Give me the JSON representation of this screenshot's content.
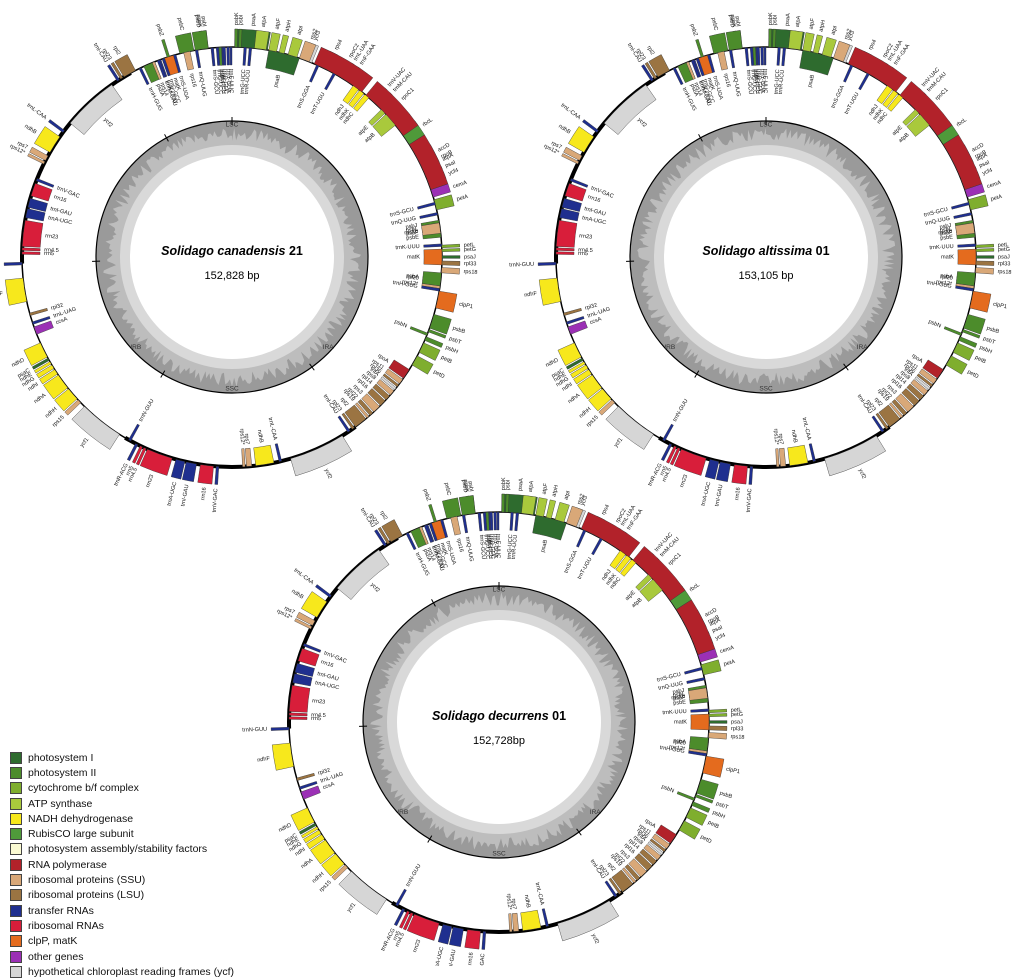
{
  "maps": [
    {
      "species": "Solidago canadensis",
      "sample": "21",
      "length": "152,828 bp",
      "region_labels": {
        "lsc": "LSC",
        "ssc": "SSC",
        "ira": "IRA",
        "irb": "IRB"
      }
    },
    {
      "species": "Solidago altissima",
      "sample": "01",
      "length": "153,105 bp",
      "region_labels": {
        "lsc": "LSC",
        "ssc": "SSC",
        "ira": "IRA",
        "irb": "IRB"
      }
    },
    {
      "species": "Solidago decurrens",
      "sample": "01",
      "length": "152,728bp",
      "region_labels": {
        "lsc": "LSC",
        "ssc": "SSC",
        "ira": "IRA",
        "irb": "IRB"
      }
    }
  ],
  "legend": [
    {
      "label": "photosystem I",
      "color": "#2e6b2e"
    },
    {
      "label": "photosystem II",
      "color": "#4c8c2b"
    },
    {
      "label": "cytochrome b/f complex",
      "color": "#7fae2e"
    },
    {
      "label": "ATP synthase",
      "color": "#a9c93c"
    },
    {
      "label": "NADH dehydrogenase",
      "color": "#f7e81c"
    },
    {
      "label": "RubisCO large subunit",
      "color": "#4f9a3a"
    },
    {
      "label": "photosystem assembly/stability factors",
      "color": "#fafad2"
    },
    {
      "label": "RNA polymerase",
      "color": "#b2222a"
    },
    {
      "label": "ribosomal proteins (SSU)",
      "color": "#d9a878"
    },
    {
      "label": "ribosomal proteins (LSU)",
      "color": "#9b7442"
    },
    {
      "label": "transfer RNAs",
      "color": "#1f2f8f"
    },
    {
      "label": "ribosomal RNAs",
      "color": "#d81e3a"
    },
    {
      "label": "clpP, matK",
      "color": "#e46b1e"
    },
    {
      "label": "other genes",
      "color": "#9b30b5"
    },
    {
      "label": "hypothetical chloroplast reading frames (ycf)",
      "color": "#d6d6d6"
    }
  ],
  "genes": [
    {
      "name": "psaA",
      "cat": 0,
      "start": 0.002,
      "end": 0.027,
      "side": "out"
    },
    {
      "name": "psaB",
      "cat": 0,
      "start": 0.028,
      "end": 0.052,
      "side": "in"
    },
    {
      "name": "ycf3",
      "cat": 14,
      "start": 0.055,
      "end": 0.062,
      "side": "out"
    },
    {
      "name": "trnS-GGA",
      "cat": 10,
      "start": 0.066,
      "end": 0.068,
      "side": "in"
    },
    {
      "name": "rps4",
      "cat": 8,
      "start": 0.071,
      "end": 0.077,
      "side": "out"
    },
    {
      "name": "trnT-UGU",
      "cat": 10,
      "start": 0.08,
      "end": 0.082,
      "side": "in"
    },
    {
      "name": "trnL-UAA",
      "cat": 10,
      "start": 0.088,
      "end": 0.09,
      "side": "out"
    },
    {
      "name": "trnF-GAA",
      "cat": 10,
      "start": 0.093,
      "end": 0.095,
      "side": "out"
    },
    {
      "name": "ndhJ",
      "cat": 4,
      "start": 0.098,
      "end": 0.103,
      "side": "in"
    },
    {
      "name": "ndhK",
      "cat": 4,
      "start": 0.104,
      "end": 0.108,
      "side": "in"
    },
    {
      "name": "ndhC",
      "cat": 4,
      "start": 0.109,
      "end": 0.113,
      "side": "in"
    },
    {
      "name": "trnV-UAC",
      "cat": 10,
      "start": 0.117,
      "end": 0.119,
      "side": "out"
    },
    {
      "name": "trnM-CAU",
      "cat": 10,
      "start": 0.122,
      "end": 0.124,
      "side": "out"
    },
    {
      "name": "atpE",
      "cat": 3,
      "start": 0.126,
      "end": 0.13,
      "side": "in"
    },
    {
      "name": "atpB",
      "cat": 3,
      "start": 0.131,
      "end": 0.142,
      "side": "in"
    },
    {
      "name": "rbcL",
      "cat": 5,
      "start": 0.148,
      "end": 0.16,
      "side": "out"
    },
    {
      "name": "accD",
      "cat": 13,
      "start": 0.168,
      "end": 0.18,
      "side": "out"
    },
    {
      "name": "psaI",
      "cat": 0,
      "start": 0.185,
      "end": 0.187,
      "side": "out"
    },
    {
      "name": "ycf4",
      "cat": 14,
      "start": 0.189,
      "end": 0.194,
      "side": "out"
    },
    {
      "name": "cemA",
      "cat": 13,
      "start": 0.198,
      "end": 0.204,
      "side": "out"
    },
    {
      "name": "petA",
      "cat": 2,
      "start": 0.206,
      "end": 0.214,
      "side": "out"
    },
    {
      "name": "psbJ",
      "cat": 1,
      "start": 0.222,
      "end": 0.224,
      "side": "in"
    },
    {
      "name": "psbL",
      "cat": 1,
      "start": 0.225,
      "end": 0.227,
      "side": "in"
    },
    {
      "name": "psbF",
      "cat": 1,
      "start": 0.228,
      "end": 0.23,
      "side": "in"
    },
    {
      "name": "psbE",
      "cat": 1,
      "start": 0.231,
      "end": 0.235,
      "side": "in"
    },
    {
      "name": "petL",
      "cat": 2,
      "start": 0.241,
      "end": 0.243,
      "side": "out"
    },
    {
      "name": "petG",
      "cat": 2,
      "start": 0.244,
      "end": 0.246,
      "side": "out"
    },
    {
      "name": "psaJ",
      "cat": 0,
      "start": 0.249,
      "end": 0.251,
      "side": "out"
    },
    {
      "name": "rpl33",
      "cat": 9,
      "start": 0.253,
      "end": 0.256,
      "side": "out"
    },
    {
      "name": "rps18",
      "cat": 8,
      "start": 0.258,
      "end": 0.262,
      "side": "out"
    },
    {
      "name": "rpl20",
      "cat": 9,
      "start": 0.266,
      "end": 0.27,
      "side": "in"
    },
    {
      "name": "rps12*",
      "cat": 8,
      "start": 0.272,
      "end": 0.274,
      "side": "in"
    },
    {
      "name": "clpP1",
      "cat": 12,
      "start": 0.276,
      "end": 0.289,
      "side": "out"
    },
    {
      "name": "psbB",
      "cat": 1,
      "start": 0.294,
      "end": 0.305,
      "side": "out"
    },
    {
      "name": "psbT",
      "cat": 1,
      "start": 0.306,
      "end": 0.308,
      "side": "out"
    },
    {
      "name": "psbN",
      "cat": 1,
      "start": 0.309,
      "end": 0.311,
      "side": "in"
    },
    {
      "name": "psbH",
      "cat": 1,
      "start": 0.312,
      "end": 0.315,
      "side": "out"
    },
    {
      "name": "petB",
      "cat": 2,
      "start": 0.317,
      "end": 0.325,
      "side": "out"
    },
    {
      "name": "petD",
      "cat": 2,
      "start": 0.328,
      "end": 0.336,
      "side": "out"
    },
    {
      "name": "rpoA",
      "cat": 7,
      "start": 0.34,
      "end": 0.348,
      "side": "in"
    },
    {
      "name": "rps11",
      "cat": 8,
      "start": 0.349,
      "end": 0.353,
      "side": "in"
    },
    {
      "name": "rpl36",
      "cat": 9,
      "start": 0.354,
      "end": 0.356,
      "side": "in"
    },
    {
      "name": "infA",
      "cat": 14,
      "start": 0.357,
      "end": 0.359,
      "side": "in"
    },
    {
      "name": "rps8",
      "cat": 8,
      "start": 0.36,
      "end": 0.364,
      "side": "in"
    },
    {
      "name": "rpl14",
      "cat": 9,
      "start": 0.365,
      "end": 0.369,
      "side": "in"
    },
    {
      "name": "rpl16",
      "cat": 9,
      "start": 0.37,
      "end": 0.375,
      "side": "in"
    },
    {
      "name": "rps3",
      "cat": 8,
      "start": 0.376,
      "end": 0.382,
      "side": "in"
    },
    {
      "name": "rpl22",
      "cat": 9,
      "start": 0.383,
      "end": 0.386,
      "side": "in"
    },
    {
      "name": "rps19",
      "cat": 8,
      "start": 0.387,
      "end": 0.389,
      "side": "in"
    },
    {
      "name": "rpl2",
      "cat": 9,
      "start": 0.39,
      "end": 0.4,
      "side": "in"
    },
    {
      "name": "rpl23",
      "cat": 9,
      "start": 0.401,
      "end": 0.403,
      "side": "in"
    },
    {
      "name": "trnI-CAU",
      "cat": 10,
      "start": 0.405,
      "end": 0.407,
      "side": "in"
    },
    {
      "name": "ycf2",
      "cat": 14,
      "start": 0.412,
      "end": 0.455,
      "side": "out"
    },
    {
      "name": "trnL-CAA",
      "cat": 10,
      "start": 0.462,
      "end": 0.464,
      "side": "in"
    },
    {
      "name": "ndhB",
      "cat": 4,
      "start": 0.468,
      "end": 0.482,
      "side": "in"
    },
    {
      "name": "rps7",
      "cat": 8,
      "start": 0.485,
      "end": 0.489,
      "side": "in"
    },
    {
      "name": "rps12*",
      "cat": 8,
      "start": 0.49,
      "end": 0.492,
      "side": "in"
    },
    {
      "name": "trnV-GAC",
      "cat": 10,
      "start": 0.51,
      "end": 0.512,
      "side": "out"
    },
    {
      "name": "rrn16",
      "cat": 11,
      "start": 0.514,
      "end": 0.524,
      "side": "out"
    },
    {
      "name": "trnI-GAU",
      "cat": 10,
      "start": 0.527,
      "end": 0.535,
      "side": "out"
    },
    {
      "name": "trnA-UGC",
      "cat": 10,
      "start": 0.536,
      "end": 0.543,
      "side": "out"
    },
    {
      "name": "rrn23",
      "cat": 11,
      "start": 0.546,
      "end": 0.566,
      "side": "out"
    },
    {
      "name": "rrn4.5",
      "cat": 11,
      "start": 0.567,
      "end": 0.569,
      "side": "out"
    },
    {
      "name": "rrn5",
      "cat": 11,
      "start": 0.57,
      "end": 0.572,
      "side": "out"
    },
    {
      "name": "trnR-ACG",
      "cat": 10,
      "start": 0.574,
      "end": 0.576,
      "side": "out"
    },
    {
      "name": "trnN-GUU",
      "cat": 10,
      "start": 0.58,
      "end": 0.582,
      "side": "in"
    },
    {
      "name": "ycf1",
      "cat": 14,
      "start": 0.59,
      "end": 0.624,
      "side": "out"
    },
    {
      "name": "rps15",
      "cat": 8,
      "start": 0.628,
      "end": 0.631,
      "side": "out"
    },
    {
      "name": "ndhH",
      "cat": 4,
      "start": 0.632,
      "end": 0.642,
      "side": "out"
    },
    {
      "name": "ndhA",
      "cat": 4,
      "start": 0.643,
      "end": 0.655,
      "side": "out"
    },
    {
      "name": "ndhI",
      "cat": 4,
      "start": 0.656,
      "end": 0.66,
      "side": "out"
    },
    {
      "name": "ndhG",
      "cat": 4,
      "start": 0.661,
      "end": 0.664,
      "side": "out"
    },
    {
      "name": "ndhE",
      "cat": 4,
      "start": 0.665,
      "end": 0.667,
      "side": "out"
    },
    {
      "name": "psaC",
      "cat": 0,
      "start": 0.668,
      "end": 0.67,
      "side": "out"
    },
    {
      "name": "ndhD",
      "cat": 4,
      "start": 0.671,
      "end": 0.683,
      "side": "out"
    },
    {
      "name": "ccsA",
      "cat": 13,
      "start": 0.69,
      "end": 0.696,
      "side": "in"
    },
    {
      "name": "trnL-UAG",
      "cat": 10,
      "start": 0.698,
      "end": 0.7,
      "side": "in"
    },
    {
      "name": "rpl32",
      "cat": 9,
      "start": 0.705,
      "end": 0.707,
      "side": "in"
    },
    {
      "name": "ndhF",
      "cat": 4,
      "start": 0.716,
      "end": 0.734,
      "side": "out"
    },
    {
      "name": "trnN-GUU",
      "cat": 10,
      "start": 0.744,
      "end": 0.746,
      "side": "out"
    },
    {
      "name": "rrn5",
      "cat": 11,
      "start": 0.752,
      "end": 0.754,
      "side": "in"
    },
    {
      "name": "rrn4.5",
      "cat": 11,
      "start": 0.755,
      "end": 0.757,
      "side": "in"
    },
    {
      "name": "rrn23",
      "cat": 11,
      "start": 0.758,
      "end": 0.778,
      "side": "in"
    },
    {
      "name": "trnA-UGC",
      "cat": 10,
      "start": 0.78,
      "end": 0.787,
      "side": "in"
    },
    {
      "name": "trnI-GAU",
      "cat": 10,
      "start": 0.788,
      "end": 0.795,
      "side": "in"
    },
    {
      "name": "rrn16",
      "cat": 11,
      "start": 0.797,
      "end": 0.807,
      "side": "in"
    },
    {
      "name": "trnV-GAC",
      "cat": 10,
      "start": 0.809,
      "end": 0.811,
      "side": "in"
    },
    {
      "name": "rps12*",
      "cat": 8,
      "start": 0.823,
      "end": 0.825,
      "side": "out"
    },
    {
      "name": "rps7",
      "cat": 8,
      "start": 0.826,
      "end": 0.83,
      "side": "out"
    },
    {
      "name": "ndhB",
      "cat": 4,
      "start": 0.833,
      "end": 0.847,
      "side": "out"
    },
    {
      "name": "trnL-CAA",
      "cat": 10,
      "start": 0.851,
      "end": 0.853,
      "side": "out"
    },
    {
      "name": "ycf2",
      "cat": 14,
      "start": 0.86,
      "end": 0.903,
      "side": "in"
    },
    {
      "name": "trnI-CAU",
      "cat": 10,
      "start": 0.908,
      "end": 0.91,
      "side": "out"
    },
    {
      "name": "rpl23",
      "cat": 9,
      "start": 0.911,
      "end": 0.913,
      "side": "out"
    },
    {
      "name": "rpl2",
      "cat": 9,
      "start": 0.914,
      "end": 0.924,
      "side": "out"
    },
    {
      "name": "trnH-GUG",
      "cat": 10,
      "start": 0.927,
      "end": 0.929,
      "side": "in"
    },
    {
      "name": "psbA",
      "cat": 1,
      "start": 0.931,
      "end": 0.94,
      "side": "in"
    },
    {
      "name": "matK",
      "cat": 12,
      "start": 0.946,
      "end": 0.956,
      "side": "in"
    },
    {
      "name": "trnK-UUU",
      "cat": 10,
      "start": 0.943,
      "end": 0.945,
      "side": "in"
    },
    {
      "name": "rps16",
      "cat": 8,
      "start": 0.963,
      "end": 0.968,
      "side": "in"
    },
    {
      "name": "trnQ-UUG",
      "cat": 10,
      "start": 0.972,
      "end": 0.974,
      "side": "in"
    },
    {
      "name": "psbK",
      "cat": 1,
      "start": 0.977,
      "end": 0.979,
      "side": "out"
    },
    {
      "name": "psbI",
      "cat": 1,
      "start": 0.98,
      "end": 0.982,
      "side": "out"
    },
    {
      "name": "trnS-GCU",
      "cat": 10,
      "start": 0.984,
      "end": 0.986,
      "side": "in"
    },
    {
      "name": "trnG-UCC",
      "cat": 10,
      "start": 0.988,
      "end": 0.99,
      "side": "in"
    },
    {
      "name": "trnR-UCU",
      "cat": 10,
      "start": 0.991,
      "end": 0.993,
      "side": "in"
    },
    {
      "name": "atpA",
      "cat": 3,
      "start": 0.18,
      "end": 0.182,
      "side": "out"
    },
    {
      "name": "rpoC2",
      "cat": 7,
      "start": 0.0,
      "end": 0.0,
      "side": "none"
    },
    {
      "name": "rpoC1",
      "cat": 7,
      "start": 0.0,
      "end": 0.0,
      "side": "none"
    },
    {
      "name": "rpoB",
      "cat": 7,
      "start": 0.0,
      "end": 0.0,
      "side": "none"
    }
  ],
  "upper_genes": [
    {
      "name": "psbM",
      "cat": 1,
      "start": 0.99,
      "end": 0.992,
      "side": "in"
    },
    {
      "name": "trnD-GUC",
      "cat": 10,
      "start": 0.993,
      "end": 0.995,
      "side": "in"
    },
    {
      "name": "trnY-GUA",
      "cat": 10,
      "start": 0.996,
      "end": 0.998,
      "side": "in"
    },
    {
      "name": "trnE-UUC",
      "cat": 10,
      "start": 0.9985,
      "end": 0.9995,
      "side": "in"
    }
  ],
  "rpo_genes": [
    {
      "name": "rpoB",
      "cat": 7,
      "start": 0.16,
      "end": 0.198,
      "side": "out"
    },
    {
      "name": "rpoC1",
      "cat": 7,
      "start": 0.11,
      "end": 0.152,
      "side": "out"
    },
    {
      "name": "rpoC2",
      "cat": 7,
      "start": 0.064,
      "end": 0.106,
      "side": "out"
    },
    {
      "name": "rps2",
      "cat": 8,
      "start": 0.052,
      "end": 0.06,
      "side": "out"
    },
    {
      "name": "atpI",
      "cat": 3,
      "start": 0.043,
      "end": 0.05,
      "side": "out"
    },
    {
      "name": "atpH",
      "cat": 3,
      "start": 0.036,
      "end": 0.04,
      "side": "out"
    },
    {
      "name": "atpF",
      "cat": 3,
      "start": 0.028,
      "end": 0.034,
      "side": "out"
    },
    {
      "name": "atpA",
      "cat": 3,
      "start": 0.017,
      "end": 0.026,
      "side": "out"
    },
    {
      "name": "trnR-UCU",
      "cat": 10,
      "start": 0.013,
      "end": 0.015,
      "side": "in"
    },
    {
      "name": "trnG-UCC",
      "cat": 10,
      "start": 0.009,
      "end": 0.011,
      "side": "in"
    },
    {
      "name": "psbI",
      "cat": 1,
      "start": 0.005,
      "end": 0.007,
      "side": "out"
    },
    {
      "name": "psbK",
      "cat": 1,
      "start": 0.002,
      "end": 0.004,
      "side": "out"
    },
    {
      "name": "psbD",
      "cat": 1,
      "start": -0.028,
      "end": -0.018,
      "side": "out"
    },
    {
      "name": "psbC",
      "cat": 1,
      "start": -0.04,
      "end": -0.029,
      "side": "out"
    },
    {
      "name": "trnS-UGA",
      "cat": 10,
      "start": -0.045,
      "end": -0.043,
      "side": "in"
    },
    {
      "name": "psbZ",
      "cat": 1,
      "start": -0.05,
      "end": -0.048,
      "side": "out"
    },
    {
      "name": "trnG-GCC",
      "cat": 10,
      "start": -0.054,
      "end": -0.052,
      "side": "in"
    },
    {
      "name": "trnfM-CAU",
      "cat": 10,
      "start": -0.058,
      "end": -0.056,
      "side": "in"
    },
    {
      "name": "rps14",
      "cat": 8,
      "start": -0.062,
      "end": -0.06,
      "side": "in"
    },
    {
      "name": "trnS-GCU",
      "cat": 10,
      "start": 0.208,
      "end": 0.21,
      "side": "in"
    },
    {
      "name": "trnQ-UUG",
      "cat": 10,
      "start": 0.216,
      "end": 0.218,
      "side": "in"
    },
    {
      "name": "rps16",
      "cat": 8,
      "start": 0.224,
      "end": 0.232,
      "side": "in"
    },
    {
      "name": "trnK-UUU",
      "cat": 10,
      "start": 0.24,
      "end": 0.242,
      "side": "in"
    },
    {
      "name": "matK",
      "cat": 12,
      "start": 0.244,
      "end": 0.256,
      "side": "in"
    },
    {
      "name": "psbA",
      "cat": 1,
      "start": 0.262,
      "end": 0.272,
      "side": "in"
    },
    {
      "name": "trnH-GUG",
      "cat": 10,
      "start": 0.274,
      "end": 0.276,
      "side": "in"
    }
  ]
}
